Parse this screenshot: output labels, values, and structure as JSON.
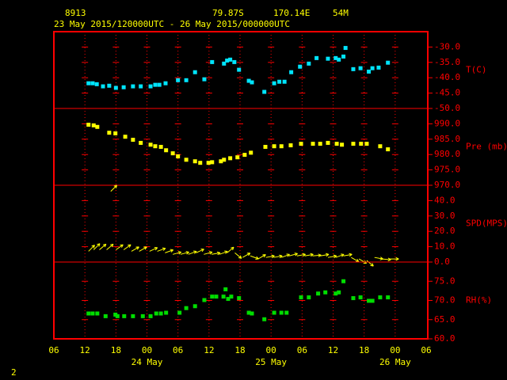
{
  "header": {
    "station": "8913",
    "lat": "79.87S",
    "lon": "170.14E",
    "elev": "54M",
    "period": "23 May 2015/120000UTC - 26 May 2015/000000UTC"
  },
  "footer": "2",
  "chart_data": [
    {
      "type": "scatter",
      "ylabel": "T(C)",
      "color": "#00e5ff",
      "xlim": [
        0,
        72
      ],
      "ylim": [
        -50,
        -25
      ],
      "yticks": [
        {
          "value": -30,
          "label": "-30.0"
        },
        {
          "value": -35,
          "label": "-35.0"
        },
        {
          "value": -40,
          "label": "-40.0"
        },
        {
          "value": -45,
          "label": "-45.0"
        },
        {
          "value": -50,
          "label": "-50.0"
        }
      ],
      "x": [
        6.7,
        7.5,
        8.3,
        9.5,
        10.7,
        12,
        13.5,
        15.3,
        16.8,
        18.7,
        19.6,
        20.4,
        21.6,
        24,
        25.6,
        27.3,
        29.1,
        30.6,
        32.9,
        33.5,
        34.1,
        34.9,
        35.8,
        37.7,
        38.3,
        40.7,
        42.6,
        43.6,
        44.6,
        45.9,
        47.6,
        49.3,
        50.8,
        53,
        54.5,
        55.1,
        56,
        56.4,
        57.9,
        59.3,
        60.9,
        61.6,
        62.8,
        64.6
      ],
      "values": [
        -41.8,
        -41.8,
        -42.1,
        -42.8,
        -42.6,
        -43.3,
        -43.1,
        -42.8,
        -42.8,
        -42.8,
        -42.3,
        -42.3,
        -41.8,
        -40.8,
        -40.8,
        -38.2,
        -40.5,
        -34.9,
        -35.4,
        -34.4,
        -34.1,
        -34.9,
        -37.4,
        -41,
        -41.5,
        -44.6,
        -41.8,
        -41.3,
        -41.3,
        -38.2,
        -36.4,
        -35.4,
        -33.6,
        -33.8,
        -33.6,
        -34.1,
        -33.1,
        -30.3,
        -37.2,
        -36.9,
        -38,
        -36.9,
        -36.7,
        -35.1
      ]
    },
    {
      "type": "scatter",
      "ylabel": "Pre (mb)",
      "color": "#ffff00",
      "xlim": [
        0,
        72
      ],
      "ylim": [
        970,
        995
      ],
      "yticks": [
        {
          "value": 990,
          "label": "990.0"
        },
        {
          "value": 985,
          "label": "985.0"
        },
        {
          "value": 980,
          "label": "980.0"
        },
        {
          "value": 975,
          "label": "975.0"
        },
        {
          "value": 970,
          "label": "970.0"
        }
      ],
      "x": [
        6.7,
        7.7,
        8.4,
        10.7,
        11.9,
        13.8,
        15.3,
        16.8,
        18.7,
        19.6,
        20.7,
        21.7,
        23,
        24,
        25.6,
        27.3,
        28.3,
        29.9,
        30.6,
        32.3,
        32.9,
        34.1,
        35.5,
        36.9,
        38.1,
        40.9,
        42.6,
        44,
        45.8,
        47.8,
        50.1,
        51.5,
        53,
        54.7,
        55.7,
        57.9,
        59.4,
        60.5,
        63.1,
        64.6
      ],
      "values": [
        989.7,
        989.5,
        989,
        987.1,
        986.9,
        985.8,
        984.8,
        983.8,
        983.2,
        982.7,
        982.5,
        981.4,
        980.4,
        979.4,
        978.3,
        977.8,
        977.3,
        977.3,
        977.5,
        977.8,
        978.3,
        978.8,
        979.1,
        979.9,
        980.6,
        982.5,
        982.7,
        982.7,
        983,
        983.5,
        983.5,
        983.5,
        983.8,
        983.5,
        983.2,
        983.5,
        983.5,
        983.5,
        982.7,
        981.7
      ]
    },
    {
      "type": "vector",
      "ylabel": "SPD(MPS)",
      "color": "#ffff00",
      "xlim": [
        0,
        72
      ],
      "ylim": [
        0,
        50
      ],
      "yticks": [
        {
          "value": 40,
          "label": "40.0"
        },
        {
          "value": 30,
          "label": "30.0"
        },
        {
          "value": 20,
          "label": "20.0"
        },
        {
          "value": 10,
          "label": "10.0"
        },
        {
          "value": 0,
          "label": "0.0"
        }
      ],
      "x": [
        6.7,
        7.7,
        8.8,
        10.2,
        11,
        12,
        13.5,
        15,
        16.5,
        18.5,
        20,
        21.5,
        23,
        24.5,
        26,
        27.5,
        29,
        30.5,
        32,
        33.5,
        35,
        36.5,
        38,
        39.5,
        41,
        42.5,
        44,
        45.5,
        47,
        48.5,
        50,
        51.5,
        53,
        54.5,
        56,
        57.5,
        59,
        60.5,
        62,
        63.5,
        65
      ],
      "values": [
        7,
        8,
        8,
        8,
        46,
        8,
        8,
        7,
        7,
        7,
        7,
        6,
        5,
        5,
        5,
        6,
        5,
        5,
        5,
        6,
        6,
        3,
        4,
        2,
        3,
        3,
        3,
        4,
        4,
        4,
        4,
        4,
        3,
        3,
        4,
        3,
        2,
        1,
        3,
        2,
        2
      ],
      "directions": [
        45,
        45,
        50,
        50,
        45,
        55,
        55,
        60,
        60,
        65,
        70,
        70,
        75,
        75,
        70,
        65,
        75,
        80,
        70,
        50,
        130,
        60,
        110,
        60,
        80,
        80,
        70,
        75,
        80,
        80,
        85,
        80,
        80,
        70,
        80,
        120,
        120,
        130,
        100,
        95,
        90
      ]
    },
    {
      "type": "scatter",
      "ylabel": "RH(%)",
      "color": "#00dd00",
      "xlim": [
        0,
        72
      ],
      "ylim": [
        60,
        80
      ],
      "yticks": [
        {
          "value": 75,
          "label": "75.0"
        },
        {
          "value": 70,
          "label": "70.0"
        },
        {
          "value": 65,
          "label": "65.0"
        },
        {
          "value": 60,
          "label": "60.0"
        }
      ],
      "x": [
        6.7,
        7.5,
        8.4,
        10,
        11.9,
        12.3,
        13.6,
        15.3,
        17.2,
        18.7,
        19.8,
        20.7,
        21.7,
        24.3,
        25.6,
        27.3,
        29.1,
        30.6,
        31.4,
        32.8,
        33.2,
        33.7,
        34.3,
        35.8,
        37.7,
        38.3,
        40.7,
        42.6,
        44,
        45,
        47.8,
        49.3,
        51.1,
        52.5,
        54.5,
        55.1,
        56,
        57.9,
        59.3,
        60.9,
        61.6,
        63.1,
        64.6
      ],
      "values": [
        66.6,
        66.6,
        66.6,
        65.9,
        66.3,
        65.9,
        65.9,
        65.9,
        65.9,
        65.9,
        66.6,
        66.6,
        66.8,
        66.8,
        68,
        68.5,
        70.1,
        71,
        71,
        71,
        72.9,
        70.4,
        71,
        70.6,
        66.8,
        66.6,
        65.1,
        66.8,
        66.8,
        66.8,
        70.8,
        70.8,
        71.8,
        72.1,
        71.8,
        72.1,
        75,
        70.6,
        70.8,
        69.9,
        69.9,
        70.8,
        70.8
      ],
      "xticks": [
        {
          "value": 0,
          "label": "06"
        },
        {
          "value": 6,
          "label": "12"
        },
        {
          "value": 12,
          "label": "18"
        },
        {
          "value": 18,
          "label": "00"
        },
        {
          "value": 24,
          "label": "06"
        },
        {
          "value": 30,
          "label": "12"
        },
        {
          "value": 36,
          "label": "18"
        },
        {
          "value": 42,
          "label": "00"
        },
        {
          "value": 48,
          "label": "06"
        },
        {
          "value": 54,
          "label": "12"
        },
        {
          "value": 60,
          "label": "18"
        },
        {
          "value": 66,
          "label": "00"
        },
        {
          "value": 72,
          "label": "06"
        }
      ],
      "x_date_labels": [
        {
          "value": 18,
          "label": "24 May"
        },
        {
          "value": 42,
          "label": "25 May"
        },
        {
          "value": 66,
          "label": "26 May"
        }
      ]
    }
  ]
}
